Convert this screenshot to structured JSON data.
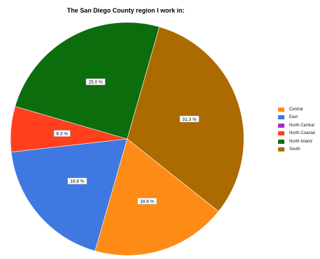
{
  "chart_data": {
    "type": "pie",
    "title": "The San Diego County region I work in:",
    "slices": [
      {
        "name": "Central",
        "value": 18.8,
        "label": "18.8 %",
        "color": "#ff8b17"
      },
      {
        "name": "East",
        "value": 18.8,
        "label": "18.8 %",
        "color": "#3f78e0"
      },
      {
        "name": "North Central",
        "value": 0,
        "label": "",
        "color": "#a928c8"
      },
      {
        "name": "North Coastal",
        "value": 6.3,
        "label": "6.3 %",
        "color": "#ff3f1e"
      },
      {
        "name": "North Inland",
        "value": 25.0,
        "label": "25.0 %",
        "color": "#0c6d0c"
      },
      {
        "name": "South",
        "value": 31.3,
        "label": "31.3 %",
        "color": "#ac6b00"
      }
    ],
    "legend_placement": "right"
  }
}
